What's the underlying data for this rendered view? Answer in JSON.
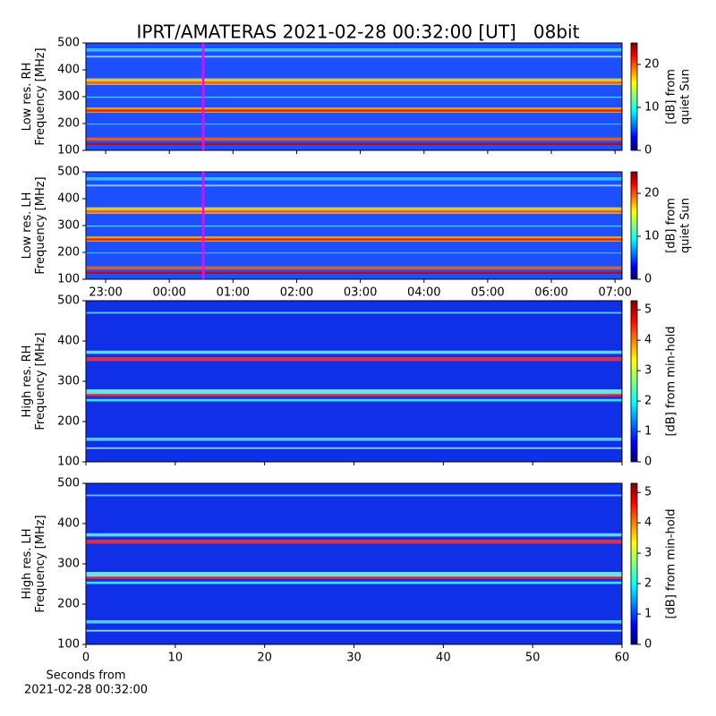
{
  "title": "IPRT/AMATERAS 2021-02-28 00:32:00 [UT]   08bit",
  "chart_data": [
    {
      "type": "heatmap",
      "ylabel": [
        "Low res. RH",
        "Frequency [MHz]"
      ],
      "ylim": [
        100,
        500
      ],
      "yticks": [
        100,
        200,
        300,
        400,
        500
      ],
      "xlim": [
        -1.31,
        7.11
      ],
      "marker_x": 0.533,
      "marker_color": "#ff00ff",
      "colorbar": {
        "label": [
          "[dB] from",
          "quiet Sun"
        ],
        "lim": [
          0,
          25
        ],
        "ticks": [
          0,
          10,
          20
        ]
      }
    },
    {
      "type": "heatmap",
      "ylabel": [
        "Low res. LH",
        "Frequency [MHz]"
      ],
      "ylim": [
        100,
        500
      ],
      "yticks": [
        100,
        200,
        300,
        400,
        500
      ],
      "xlim": [
        -1.31,
        7.11
      ],
      "marker_x": 0.533,
      "marker_color": "#ff00ff",
      "xticks": [
        {
          "value": -1,
          "label": "23:00"
        },
        {
          "value": 0,
          "label": "00:00"
        },
        {
          "value": 1,
          "label": "01:00"
        },
        {
          "value": 2,
          "label": "02:00"
        },
        {
          "value": 3,
          "label": "03:00"
        },
        {
          "value": 4,
          "label": "04:00"
        },
        {
          "value": 5,
          "label": "05:00"
        },
        {
          "value": 6,
          "label": "06:00"
        },
        {
          "value": 7,
          "label": "07:00"
        }
      ],
      "colorbar": {
        "label": [
          "[dB] from",
          "quiet Sun"
        ],
        "lim": [
          0,
          25
        ],
        "ticks": [
          0,
          10,
          20
        ]
      }
    },
    {
      "type": "heatmap",
      "ylabel": [
        "High res. RH",
        "Frequency [MHz]"
      ],
      "ylim": [
        100,
        500
      ],
      "yticks": [
        100,
        200,
        300,
        400,
        500
      ],
      "xlim": [
        0,
        60
      ],
      "colorbar": {
        "label": [
          "[dB] from min-hold"
        ],
        "lim": [
          0,
          5.3
        ],
        "ticks": [
          0,
          1,
          2,
          3,
          4,
          5
        ]
      }
    },
    {
      "type": "heatmap",
      "ylabel": [
        "High res. LH",
        "Frequency [MHz]"
      ],
      "ylim": [
        100,
        500
      ],
      "yticks": [
        100,
        200,
        300,
        400,
        500
      ],
      "xlim": [
        0,
        60
      ],
      "xticks": [
        0,
        10,
        20,
        30,
        40,
        50,
        60
      ],
      "xlabel": [
        "Seconds from",
        "2021-02-28 00:32:00"
      ],
      "colorbar": {
        "label": [
          "[dB] from min-hold"
        ],
        "lim": [
          0,
          5.3
        ],
        "ticks": [
          0,
          1,
          2,
          3,
          4,
          5
        ]
      }
    }
  ]
}
